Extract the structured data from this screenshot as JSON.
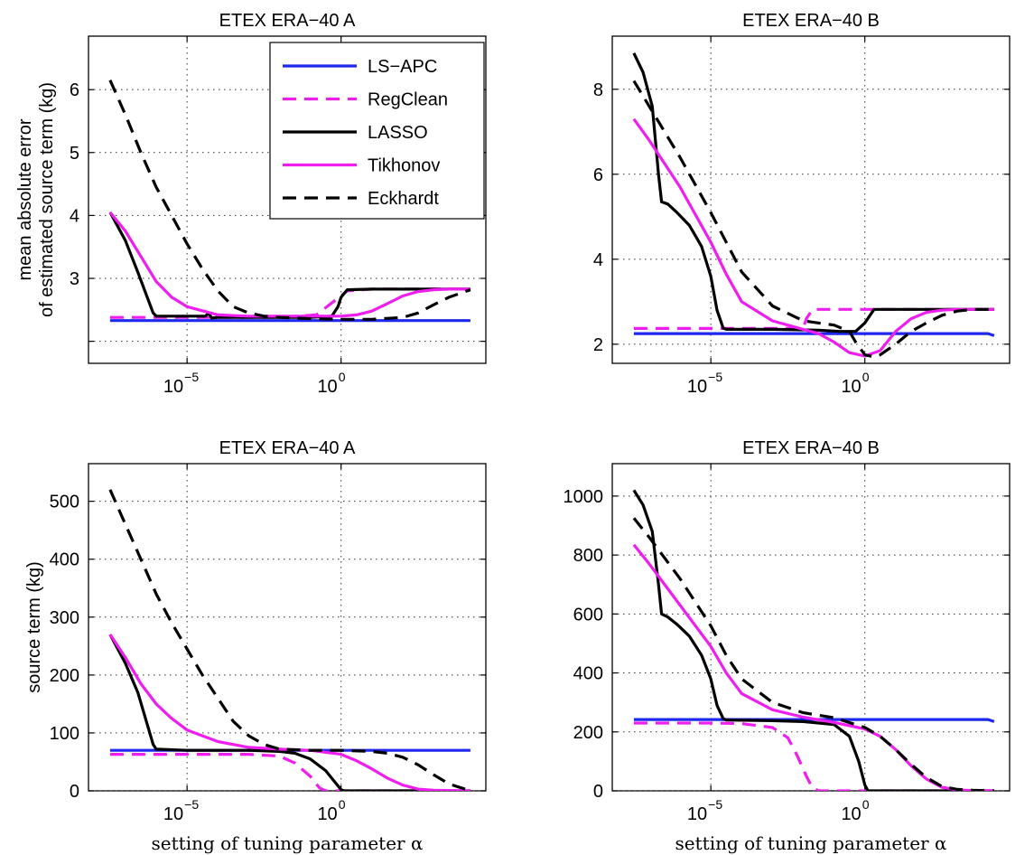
{
  "colors": {
    "LS-APC": "#1f28ee",
    "RegClean": "#ee1fee",
    "LASSO": "#000000",
    "Tikhonov": "#ee1fee",
    "Eckhardt": "#000000"
  },
  "legend": [
    "LS−APC",
    "RegClean",
    "LASSO",
    "Tikhonov",
    "Eckhardt"
  ],
  "chart_data": [
    {
      "type": "line",
      "title": "ETEX ERA−40 A",
      "ylabel": [
        "mean absolute error",
        "of estimated source term (kg)"
      ],
      "xlabel": "",
      "xscale": "log",
      "xlim": [
        -8.2,
        4.7
      ],
      "ylim": [
        1.65,
        6.85
      ],
      "yticks": [
        2,
        3,
        4,
        5,
        6
      ],
      "ytick_labels": [
        "",
        "3",
        "4",
        "5",
        "6"
      ],
      "xticks": [
        -5,
        0
      ],
      "xtick_labels": [
        {
          "base": "10",
          "exp": "−5"
        },
        {
          "base": "10",
          "exp": "0"
        }
      ],
      "grid": true,
      "legend_position": "top-right",
      "series": [
        {
          "name": "LS−APC",
          "style": "solid",
          "x": [
            -7.5,
            4.2
          ],
          "y": [
            2.33,
            2.33
          ]
        },
        {
          "name": "RegClean",
          "style": "dashed",
          "x": [
            -7.5,
            -6.5,
            -5.0,
            -4.0,
            -2.0,
            -0.8,
            0.2,
            1.0,
            4.2
          ],
          "y": [
            2.38,
            2.38,
            2.38,
            2.38,
            2.38,
            2.42,
            2.8,
            2.83,
            2.83
          ]
        },
        {
          "name": "LASSO",
          "style": "solid",
          "x": [
            -7.5,
            -7.0,
            -6.6,
            -6.1,
            -6.0,
            -5.5,
            -4.8,
            -4.4,
            -4.3,
            -4.2,
            -4.0,
            -3.5,
            -3.0,
            -2.0,
            -1.0,
            -0.3,
            -0.1,
            0.0,
            0.2,
            1.0,
            4.2
          ],
          "y": [
            4.05,
            3.6,
            3.1,
            2.45,
            2.4,
            2.4,
            2.4,
            2.4,
            2.45,
            2.37,
            2.38,
            2.38,
            2.38,
            2.38,
            2.38,
            2.4,
            2.55,
            2.7,
            2.82,
            2.83,
            2.83
          ]
        },
        {
          "name": "Tikhonov",
          "style": "solid",
          "x": [
            -7.5,
            -7.0,
            -6.5,
            -6.0,
            -5.5,
            -5.0,
            -4.0,
            -3.0,
            -2.0,
            -1.0,
            0.0,
            0.5,
            1.0,
            1.5,
            2.0,
            2.5,
            3.0,
            3.5,
            4.2
          ],
          "y": [
            4.05,
            3.75,
            3.35,
            2.95,
            2.7,
            2.55,
            2.42,
            2.4,
            2.4,
            2.4,
            2.4,
            2.42,
            2.48,
            2.6,
            2.72,
            2.79,
            2.82,
            2.83,
            2.83
          ]
        },
        {
          "name": "Eckhardt",
          "style": "dashed",
          "x": [
            -7.5,
            -7.0,
            -6.5,
            -6.0,
            -5.5,
            -5.0,
            -4.5,
            -4.0,
            -3.5,
            -3.0,
            -2.5,
            -2.0,
            -1.0,
            0.0,
            1.0,
            2.0,
            2.5,
            3.0,
            3.5,
            4.2
          ],
          "y": [
            6.15,
            5.6,
            5.0,
            4.45,
            4.0,
            3.55,
            3.15,
            2.8,
            2.55,
            2.45,
            2.4,
            2.38,
            2.36,
            2.35,
            2.35,
            2.38,
            2.45,
            2.58,
            2.7,
            2.82
          ]
        }
      ]
    },
    {
      "type": "line",
      "title": "ETEX ERA−40 B",
      "ylabel": [],
      "xlabel": "",
      "xscale": "log",
      "xlim": [
        -8.2,
        4.7
      ],
      "ylim": [
        1.55,
        9.25
      ],
      "yticks": [
        2,
        4,
        6,
        8
      ],
      "ytick_labels": [
        "2",
        "4",
        "6",
        "8"
      ],
      "xticks": [
        -5,
        0
      ],
      "xtick_labels": [
        {
          "base": "10",
          "exp": "−5"
        },
        {
          "base": "10",
          "exp": "0"
        }
      ],
      "grid": true,
      "series": [
        {
          "name": "LS−APC",
          "style": "solid",
          "x": [
            -7.5,
            4.0,
            4.2
          ],
          "y": [
            2.25,
            2.25,
            2.2
          ]
        },
        {
          "name": "RegClean",
          "style": "dashed",
          "x": [
            -7.5,
            -5.0,
            -3.0,
            -2.0,
            -1.9,
            -1.7,
            0.0,
            4.2
          ],
          "y": [
            2.37,
            2.37,
            2.37,
            2.37,
            2.6,
            2.82,
            2.82,
            2.82
          ]
        },
        {
          "name": "LASSO",
          "style": "solid",
          "x": [
            -7.5,
            -7.2,
            -6.9,
            -6.7,
            -6.6,
            -6.4,
            -6.1,
            -5.7,
            -5.3,
            -5.0,
            -4.8,
            -4.6,
            -4.5,
            -3.0,
            -1.5,
            -0.8,
            -0.3,
            0.0,
            0.3,
            4.2
          ],
          "y": [
            8.85,
            8.4,
            7.6,
            6.0,
            5.35,
            5.3,
            5.1,
            4.8,
            4.3,
            3.6,
            2.8,
            2.38,
            2.35,
            2.35,
            2.33,
            2.3,
            2.3,
            2.5,
            2.82,
            2.82
          ]
        },
        {
          "name": "Tikhonov",
          "style": "solid",
          "x": [
            -7.5,
            -7.0,
            -6.0,
            -5.0,
            -4.5,
            -4.0,
            -3.0,
            -2.0,
            -1.5,
            -1.0,
            -0.5,
            0.0,
            0.5,
            1.0,
            1.5,
            2.0,
            2.5,
            3.0,
            4.2
          ],
          "y": [
            7.3,
            6.8,
            5.7,
            4.4,
            3.65,
            3.0,
            2.55,
            2.35,
            2.25,
            2.05,
            1.8,
            1.72,
            1.85,
            2.3,
            2.6,
            2.75,
            2.8,
            2.82,
            2.82
          ]
        },
        {
          "name": "Eckhardt",
          "style": "dashed",
          "x": [
            -7.5,
            -7.0,
            -6.0,
            -5.0,
            -4.5,
            -4.0,
            -3.0,
            -2.0,
            -1.0,
            -0.5,
            -0.3,
            0.0,
            0.3,
            0.5,
            1.0,
            1.5,
            2.0,
            2.5,
            3.0,
            3.5,
            4.2
          ],
          "y": [
            8.2,
            7.6,
            6.4,
            5.1,
            4.4,
            3.7,
            2.9,
            2.55,
            2.45,
            2.3,
            2.05,
            1.75,
            1.7,
            1.75,
            2.0,
            2.3,
            2.5,
            2.68,
            2.78,
            2.82,
            2.82
          ]
        }
      ]
    },
    {
      "type": "line",
      "title": "ETEX ERA−40 A",
      "ylabel": [
        "source term (kg)"
      ],
      "xlabel": "setting of tuning parameter α",
      "xscale": "log",
      "xlim": [
        -8.2,
        4.7
      ],
      "ylim": [
        0,
        565
      ],
      "yticks": [
        0,
        100,
        200,
        300,
        400,
        500
      ],
      "ytick_labels": [
        "0",
        "100",
        "200",
        "300",
        "400",
        "500"
      ],
      "xticks": [
        -5,
        0
      ],
      "xtick_labels": [
        {
          "base": "10",
          "exp": "−5"
        },
        {
          "base": "10",
          "exp": "0"
        }
      ],
      "grid": true,
      "series": [
        {
          "name": "LS−APC",
          "style": "solid",
          "x": [
            -7.5,
            4.2
          ],
          "y": [
            70,
            70
          ]
        },
        {
          "name": "RegClean",
          "style": "dashed",
          "x": [
            -7.5,
            -5.0,
            -3.0,
            -2.0,
            -1.5,
            -1.0,
            -0.7,
            -0.5,
            4.2
          ],
          "y": [
            63,
            63,
            63,
            60,
            48,
            25,
            5,
            0,
            0
          ]
        },
        {
          "name": "LASSO",
          "style": "solid",
          "x": [
            -7.5,
            -7.0,
            -6.6,
            -6.1,
            -6.0,
            -5.0,
            -4.0,
            -3.0,
            -2.0,
            -1.5,
            -1.0,
            -0.5,
            -0.2,
            0.0,
            0.1,
            4.2
          ],
          "y": [
            270,
            220,
            170,
            80,
            72,
            70,
            70,
            70,
            68,
            65,
            55,
            35,
            15,
            2,
            0,
            0
          ]
        },
        {
          "name": "Tikhonov",
          "style": "solid",
          "x": [
            -7.5,
            -7.0,
            -6.5,
            -6.0,
            -5.5,
            -5.0,
            -4.0,
            -3.0,
            -2.0,
            -1.0,
            0.0,
            0.5,
            1.0,
            1.5,
            2.0,
            2.5,
            3.0,
            4.2
          ],
          "y": [
            270,
            230,
            185,
            150,
            125,
            105,
            85,
            75,
            72,
            70,
            63,
            52,
            38,
            22,
            10,
            3,
            1,
            0
          ]
        },
        {
          "name": "Eckhardt",
          "style": "dashed",
          "x": [
            -7.5,
            -7.0,
            -6.5,
            -6.0,
            -5.5,
            -5.0,
            -4.5,
            -4.0,
            -3.5,
            -3.0,
            -2.5,
            -2.0,
            -1.0,
            0.0,
            1.0,
            1.5,
            2.0,
            2.5,
            3.0,
            3.5,
            4.2
          ],
          "y": [
            520,
            460,
            400,
            340,
            290,
            245,
            200,
            160,
            120,
            95,
            80,
            72,
            70,
            70,
            68,
            65,
            58,
            45,
            28,
            12,
            0
          ]
        }
      ]
    },
    {
      "type": "line",
      "title": "ETEX ERA−40 B",
      "ylabel": [],
      "xlabel": "setting of tuning parameter α",
      "xscale": "log",
      "xlim": [
        -8.2,
        4.7
      ],
      "ylim": [
        0,
        1110
      ],
      "yticks": [
        0,
        200,
        400,
        600,
        800,
        1000
      ],
      "ytick_labels": [
        "0",
        "200",
        "400",
        "600",
        "800",
        "1000"
      ],
      "xticks": [
        -5,
        0
      ],
      "xtick_labels": [
        {
          "base": "10",
          "exp": "−5"
        },
        {
          "base": "10",
          "exp": "0"
        }
      ],
      "grid": true,
      "series": [
        {
          "name": "LS−APC",
          "style": "solid",
          "x": [
            -7.5,
            4.0,
            4.2
          ],
          "y": [
            242,
            242,
            235
          ]
        },
        {
          "name": "RegClean",
          "style": "dashed",
          "x": [
            -7.5,
            -5.0,
            -4.0,
            -3.0,
            -2.5,
            -2.2,
            -1.9,
            -1.7,
            -1.5,
            4.2
          ],
          "y": [
            230,
            230,
            228,
            215,
            180,
            120,
            50,
            10,
            0,
            0
          ]
        },
        {
          "name": "LASSO",
          "style": "solid",
          "x": [
            -7.5,
            -7.2,
            -6.9,
            -6.7,
            -6.6,
            -6.4,
            -6.1,
            -5.7,
            -5.3,
            -5.0,
            -4.8,
            -4.6,
            -4.5,
            -3.0,
            -2.0,
            -1.0,
            -0.5,
            -0.2,
            0.0,
            0.1,
            4.2
          ],
          "y": [
            1020,
            970,
            880,
            700,
            600,
            590,
            565,
            525,
            460,
            380,
            290,
            245,
            240,
            238,
            235,
            225,
            185,
            100,
            20,
            0,
            0
          ]
        },
        {
          "name": "Tikhonov",
          "style": "solid",
          "x": [
            -7.5,
            -7.0,
            -6.0,
            -5.0,
            -4.5,
            -4.0,
            -3.0,
            -2.0,
            -1.0,
            0.0,
            0.5,
            1.0,
            1.5,
            2.0,
            2.5,
            3.0,
            3.5,
            4.2
          ],
          "y": [
            835,
            770,
            630,
            490,
            400,
            330,
            275,
            250,
            232,
            210,
            185,
            140,
            85,
            40,
            12,
            3,
            1,
            0
          ]
        },
        {
          "name": "Eckhardt",
          "style": "dashed",
          "x": [
            -7.5,
            -7.0,
            -6.0,
            -5.0,
            -4.5,
            -4.0,
            -3.0,
            -2.0,
            -1.0,
            0.0,
            0.5,
            1.0,
            1.5,
            2.0,
            2.5,
            3.0,
            3.5,
            4.2
          ],
          "y": [
            925,
            860,
            720,
            560,
            460,
            380,
            300,
            265,
            248,
            215,
            185,
            140,
            90,
            45,
            15,
            5,
            2,
            0
          ]
        }
      ]
    }
  ]
}
